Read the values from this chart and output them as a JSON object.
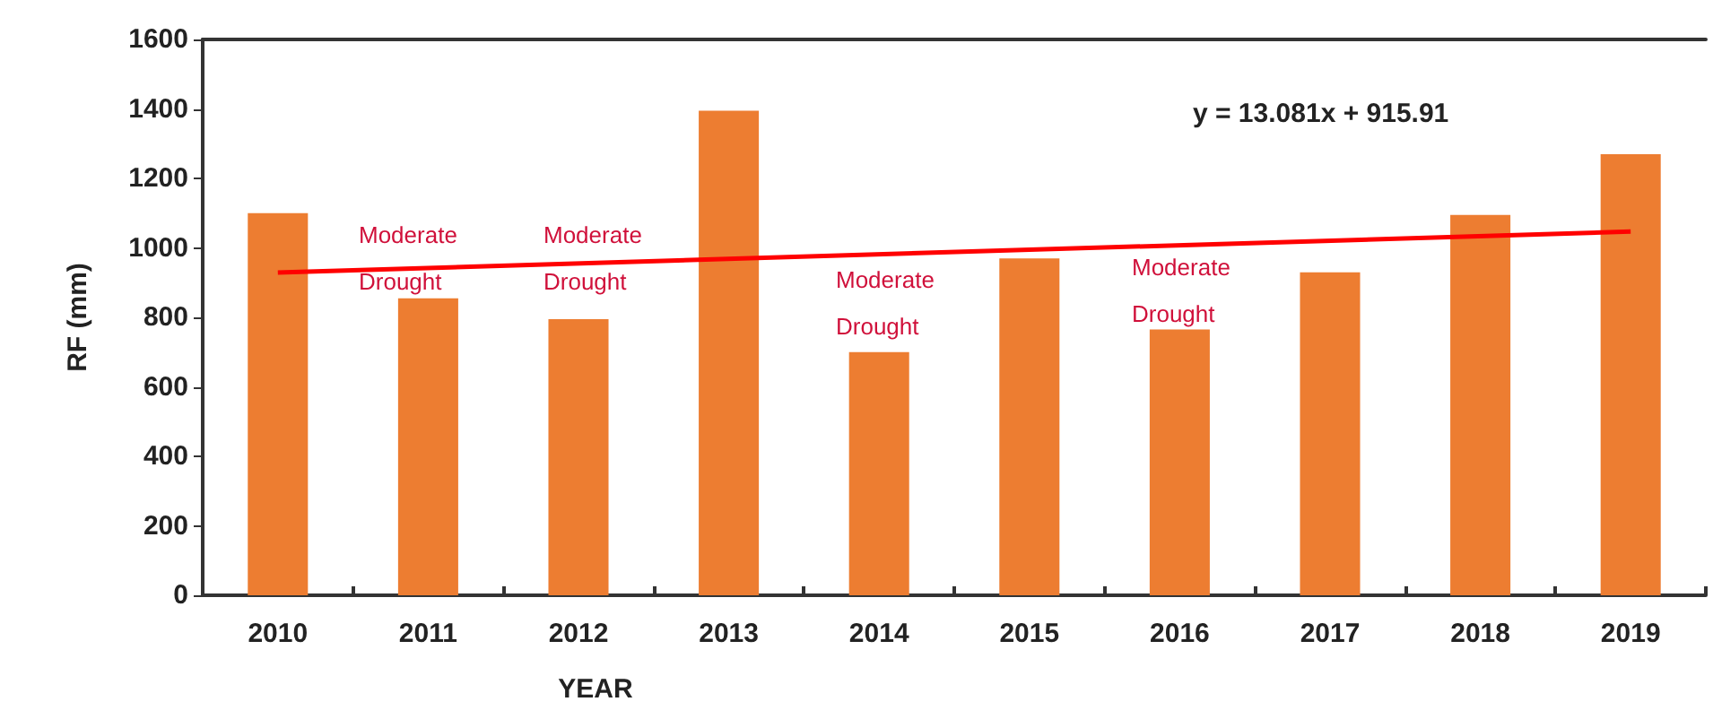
{
  "chart_data": {
    "type": "bar",
    "xlabel": "YEAR",
    "ylabel": "RF (mm)",
    "categories": [
      "2010",
      "2011",
      "2012",
      "2013",
      "2014",
      "2015",
      "2016",
      "2017",
      "2018",
      "2019"
    ],
    "series": [
      {
        "color": "#ed7d31",
        "values": [
          1100,
          855,
          795,
          1395,
          700,
          970,
          765,
          930,
          1095,
          1270
        ]
      },
      {
        "type": "line",
        "color": "#ff0000",
        "values": [
          929,
          null,
          null,
          null,
          null,
          null,
          null,
          null,
          null,
          1047
        ],
        "marker": "none",
        "line_style": "solid"
      }
    ],
    "ylim": [
      0,
      1600
    ],
    "yticks": [
      0,
      200,
      400,
      600,
      800,
      1000,
      1200,
      1400,
      1600
    ],
    "grid": false,
    "annotations": [
      "Moderate Drought",
      "Moderate Drought",
      "Moderate Drought",
      "Moderate Drought",
      "y = 13.081x + 915.91"
    ]
  }
}
